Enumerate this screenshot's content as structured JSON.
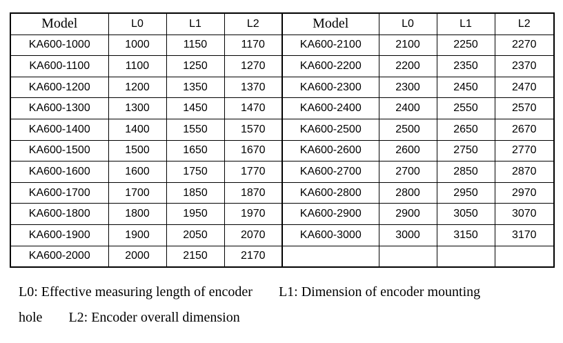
{
  "header": [
    "Model",
    "L0",
    "L1",
    "L2"
  ],
  "left_rows": [
    [
      "KA600-1000",
      "1000",
      "1150",
      "1170"
    ],
    [
      "KA600-1100",
      "1100",
      "1250",
      "1270"
    ],
    [
      "KA600-1200",
      "1200",
      "1350",
      "1370"
    ],
    [
      "KA600-1300",
      "1300",
      "1450",
      "1470"
    ],
    [
      "KA600-1400",
      "1400",
      "1550",
      "1570"
    ],
    [
      "KA600-1500",
      "1500",
      "1650",
      "1670"
    ],
    [
      "KA600-1600",
      "1600",
      "1750",
      "1770"
    ],
    [
      "KA600-1700",
      "1700",
      "1850",
      "1870"
    ],
    [
      "KA600-1800",
      "1800",
      "1950",
      "1970"
    ],
    [
      "KA600-1900",
      "1900",
      "2050",
      "2070"
    ],
    [
      "KA600-2000",
      "2000",
      "2150",
      "2170"
    ]
  ],
  "right_rows": [
    [
      "KA600-2100",
      "2100",
      "2250",
      "2270"
    ],
    [
      "KA600-2200",
      "2200",
      "2350",
      "2370"
    ],
    [
      "KA600-2300",
      "2300",
      "2450",
      "2470"
    ],
    [
      "KA600-2400",
      "2400",
      "2550",
      "2570"
    ],
    [
      "KA600-2500",
      "2500",
      "2650",
      "2670"
    ],
    [
      "KA600-2600",
      "2600",
      "2750",
      "2770"
    ],
    [
      "KA600-2700",
      "2700",
      "2850",
      "2870"
    ],
    [
      "KA600-2800",
      "2800",
      "2950",
      "2970"
    ],
    [
      "KA600-2900",
      "2900",
      "3050",
      "3070"
    ],
    [
      "KA600-3000",
      "3000",
      "3150",
      "3170"
    ]
  ],
  "footnote": {
    "l0": "L0: Effective measuring length of encoder",
    "l1": "L1: Dimension of encoder mounting",
    "l1_cont": "hole",
    "l2": "L2: Encoder overall dimension"
  }
}
